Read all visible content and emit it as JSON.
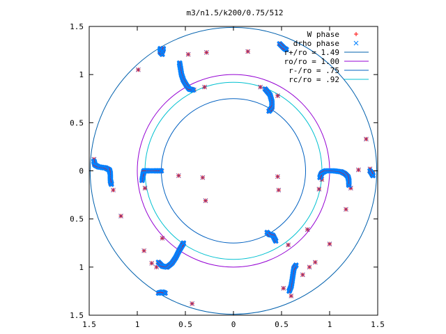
{
  "chart_data": {
    "type": "scatter",
    "title": "m3/n1.5/k200/0.75/512",
    "xlabel": "",
    "ylabel": "",
    "xlim": [
      -1.5,
      1.5
    ],
    "ylim": [
      -1.5,
      1.5
    ],
    "x_tick_labels": [
      "1.5",
      "1",
      "0.5",
      "0",
      "0.5",
      "1",
      "1.5"
    ],
    "y_tick_labels": [
      "1.5",
      "1",
      "0.5",
      "0",
      "0.5",
      "1",
      "1.5"
    ],
    "grid": false,
    "legend_position": "top-right",
    "legend": [
      {
        "label": "W phase",
        "symbol": "plus",
        "color": "#ff0000"
      },
      {
        "label": "drho phase",
        "symbol": "cross",
        "color": "#0080ff"
      },
      {
        "label": "r+/ro = 1.49",
        "symbol": "line",
        "color": "#0060ad"
      },
      {
        "label": "ro/ro = 1.00",
        "symbol": "line",
        "color": "#9400d3"
      },
      {
        "label": "r-/ro = .75",
        "symbol": "line",
        "color": "#0060c0"
      },
      {
        "label": "rc/ro = .92",
        "symbol": "line",
        "color": "#00c0d0"
      }
    ],
    "circles": [
      {
        "r": 1.49,
        "color": "#0060ad"
      },
      {
        "r": 1.0,
        "color": "#9400d3"
      },
      {
        "r": 0.75,
        "color": "#0060c0"
      },
      {
        "r": 0.92,
        "color": "#00c0d0"
      }
    ],
    "isolated_points": [
      [
        -0.99,
        1.05
      ],
      [
        -0.76,
        1.24
      ],
      [
        -0.47,
        1.21
      ],
      [
        -0.28,
        1.23
      ],
      [
        0.15,
        1.24
      ],
      [
        -0.41,
        0.84
      ],
      [
        -0.3,
        0.87
      ],
      [
        0.28,
        0.87
      ],
      [
        0.46,
        0.78
      ],
      [
        -1.45,
        0.12
      ],
      [
        -1.25,
        -0.2
      ],
      [
        -1.17,
        -0.47
      ],
      [
        -0.93,
        -0.83
      ],
      [
        -0.85,
        -0.96
      ],
      [
        -0.8,
        -1.0
      ],
      [
        -0.74,
        -0.7
      ],
      [
        -0.43,
        -1.38
      ],
      [
        -0.92,
        -0.18
      ],
      [
        -0.57,
        -0.05
      ],
      [
        -0.32,
        -0.07
      ],
      [
        -0.29,
        -0.31
      ],
      [
        0.46,
        -0.06
      ],
      [
        0.47,
        -0.2
      ],
      [
        0.91,
        -0.05
      ],
      [
        0.92,
        -0.09
      ],
      [
        0.89,
        -0.19
      ],
      [
        1.22,
        -0.18
      ],
      [
        1.3,
        0.01
      ],
      [
        1.17,
        -0.4
      ],
      [
        1.0,
        -0.76
      ],
      [
        0.77,
        -0.61
      ],
      [
        0.57,
        -0.77
      ],
      [
        0.72,
        -1.08
      ],
      [
        0.79,
        -1.0
      ],
      [
        0.85,
        -0.95
      ],
      [
        0.52,
        -1.22
      ],
      [
        0.6,
        -1.3
      ],
      [
        1.38,
        0.33
      ],
      [
        1.42,
        0.02
      ],
      [
        1.45,
        -0.03
      ],
      [
        1.2,
        -0.1
      ]
    ],
    "arcs": [
      [
        [
          -0.76,
          1.27
        ],
        [
          -0.76,
          1.23
        ],
        [
          -0.74,
          1.21
        ]
      ],
      [
        [
          -0.56,
          1.12
        ],
        [
          -0.55,
          1.06
        ],
        [
          -0.54,
          1.0
        ],
        [
          -0.52,
          0.94
        ],
        [
          -0.49,
          0.89
        ],
        [
          -0.46,
          0.85
        ],
        [
          -0.42,
          0.84
        ]
      ],
      [
        [
          0.33,
          0.85
        ],
        [
          0.38,
          0.79
        ],
        [
          0.4,
          0.72
        ],
        [
          0.4,
          0.66
        ],
        [
          0.38,
          0.63
        ],
        [
          0.37,
          0.62
        ]
      ],
      [
        [
          0.48,
          1.32
        ],
        [
          0.51,
          1.29
        ],
        [
          0.53,
          1.27
        ],
        [
          0.55,
          1.26
        ]
      ],
      [
        [
          -1.45,
          0.1
        ],
        [
          -1.44,
          0.06
        ],
        [
          -1.4,
          0.04
        ],
        [
          -1.33,
          0.03
        ],
        [
          -1.29,
          0.01
        ],
        [
          -1.28,
          -0.03
        ],
        [
          -1.28,
          -0.1
        ],
        [
          -1.27,
          -0.14
        ]
      ],
      [
        [
          -0.95,
          -0.1
        ],
        [
          -0.94,
          -0.04
        ],
        [
          -0.93,
          0.0
        ],
        [
          -0.89,
          0.0
        ],
        [
          -0.81,
          0.0
        ],
        [
          -0.75,
          0.0
        ]
      ],
      [
        [
          0.44,
          -0.73
        ],
        [
          0.41,
          -0.67
        ],
        [
          0.37,
          -0.66
        ],
        [
          0.35,
          -0.64
        ]
      ],
      [
        [
          0.9,
          -0.07
        ],
        [
          0.91,
          -0.04
        ],
        [
          0.92,
          -0.02
        ],
        [
          0.96,
          0.0
        ],
        [
          1.04,
          0.0
        ],
        [
          1.12,
          -0.01
        ],
        [
          1.16,
          -0.03
        ],
        [
          1.19,
          -0.06
        ],
        [
          1.2,
          -0.1
        ],
        [
          1.2,
          -0.15
        ]
      ],
      [
        [
          1.42,
          0.0
        ],
        [
          1.44,
          -0.03
        ],
        [
          1.45,
          -0.05
        ]
      ],
      [
        [
          -0.78,
          -0.95
        ],
        [
          -0.74,
          -0.99
        ],
        [
          -0.69,
          -1.0
        ],
        [
          -0.64,
          -0.96
        ],
        [
          -0.6,
          -0.9
        ],
        [
          -0.56,
          -0.82
        ],
        [
          -0.53,
          -0.77
        ],
        [
          -0.52,
          -0.75
        ]
      ],
      [
        [
          -0.78,
          -1.27
        ],
        [
          -0.74,
          -1.26
        ],
        [
          -0.71,
          -1.27
        ]
      ],
      [
        [
          0.58,
          -1.25
        ],
        [
          0.6,
          -1.2
        ],
        [
          0.61,
          -1.14
        ],
        [
          0.62,
          -1.07
        ],
        [
          0.63,
          -1.01
        ],
        [
          0.65,
          -0.98
        ]
      ],
      [
        [
          -0.73,
          1.27
        ],
        [
          -0.74,
          1.24
        ]
      ]
    ]
  }
}
